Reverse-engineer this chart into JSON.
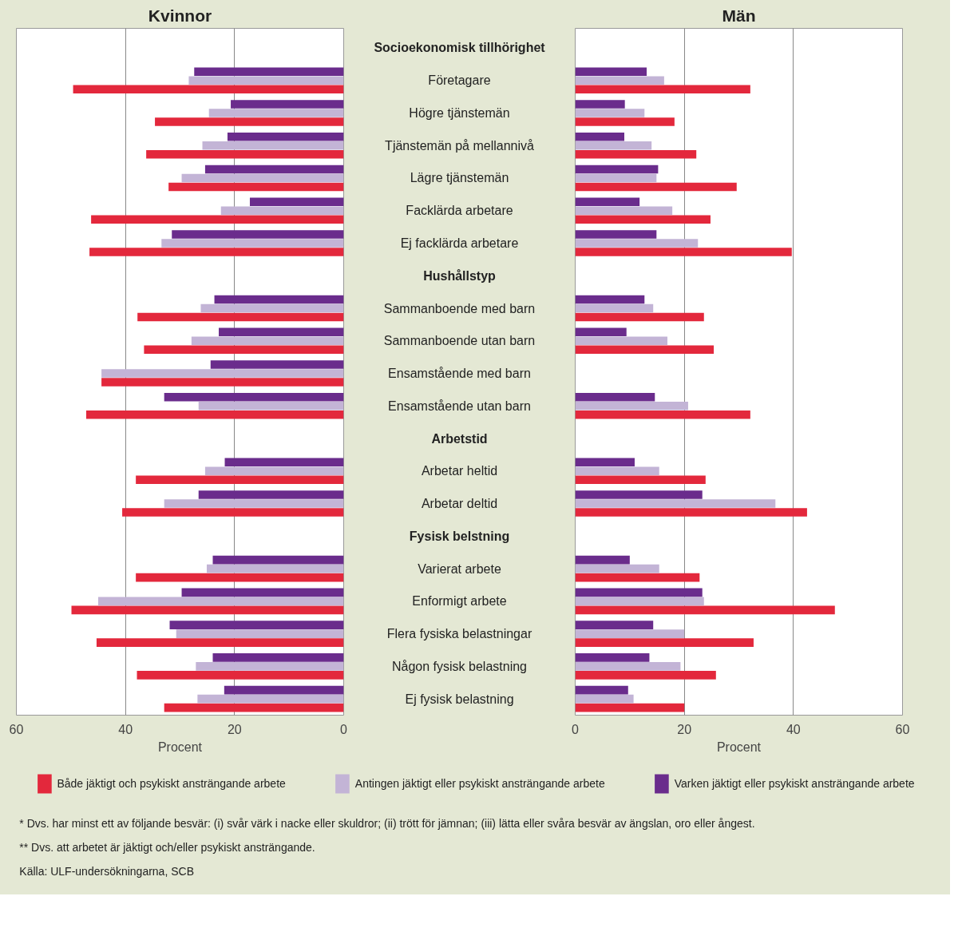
{
  "chart_data": [
    {
      "type": "bar",
      "orientation": "horizontal",
      "title": "Kvinnor",
      "xlabel": "Procent",
      "xlim": [
        60,
        0
      ],
      "xticks": [
        0,
        20,
        40,
        60
      ],
      "grid": "x",
      "legend": "bottom",
      "categories": [
        "Socioekonomisk tillhörighet",
        "Företagare",
        "Högre tjänstemän",
        "Tjänstemän på mellannivå",
        "Lägre tjänstemän",
        "Facklärda arbetare",
        "Ej facklärda arbetare",
        "Hushållstyp",
        "Sammanboende med barn",
        "Sammanboende utan barn",
        "Ensamstående med barn",
        "Ensamstående utan barn",
        "Arbetstid",
        "Arbetar heltid",
        "Arbetar deltid",
        "Fysisk belstning",
        "Varierat arbete",
        "Enformigt arbete",
        "Flera fysiska belastningar",
        "Någon fysisk belastning",
        "Ej fysisk belastning"
      ],
      "series": [
        {
          "name": "Både jäktigt och psykiskt ansträngande arbete",
          "color": "#e3283c",
          "values": [
            null,
            49.6,
            34.6,
            36.2,
            32.1,
            46.3,
            46.6,
            null,
            37.8,
            36.6,
            44.4,
            47.2,
            null,
            38.1,
            40.6,
            null,
            38.1,
            49.9,
            45.3,
            37.9,
            32.9
          ]
        },
        {
          "name": "Antingen jäktigt eller psykiskt ansträngande arbete",
          "color": "#c3b4d6",
          "values": [
            null,
            28.4,
            24.7,
            25.9,
            29.7,
            22.5,
            33.4,
            null,
            26.2,
            27.9,
            44.4,
            26.6,
            null,
            25.4,
            32.9,
            null,
            25.1,
            45.0,
            30.7,
            27.1,
            26.8
          ]
        },
        {
          "name": "Varken jäktigt eller psykiskt ansträngande arbete",
          "color": "#6a2c8c",
          "values": [
            null,
            27.4,
            20.7,
            21.3,
            25.4,
            17.2,
            31.5,
            null,
            23.7,
            22.9,
            24.4,
            32.9,
            null,
            21.8,
            26.6,
            null,
            24.0,
            29.7,
            31.9,
            24.0,
            21.9
          ]
        }
      ],
      "annotations": [
        "* Dvs. har minst ett av följande besvär: (i) svår värk i nacke eller skuldror; (ii) trött för jämnan; (iii) lätta eller svåra besvär av ängslan, oro eller ångest.",
        "** Dvs. att arbetet är jäktigt och/eller psykiskt ansträngande.",
        "Källa: ULF-undersökningarna, SCB"
      ]
    },
    {
      "type": "bar",
      "orientation": "horizontal",
      "title": "Män",
      "xlabel": "Procent",
      "xlim": [
        0,
        60
      ],
      "xticks": [
        0,
        20,
        40,
        60
      ],
      "grid": "x",
      "tick_labels": "x",
      "categories": [
        null,
        null,
        null,
        null,
        null,
        null,
        null,
        null,
        null,
        null,
        null,
        null,
        null,
        null,
        null,
        null,
        null,
        null,
        null,
        null,
        null
      ],
      "series": [
        {
          "color": "#e3283c",
          "values": [
            null,
            32.1,
            18.2,
            22.2,
            29.6,
            24.8,
            39.7,
            null,
            23.6,
            25.4,
            null,
            32.1,
            null,
            23.9,
            42.5,
            null,
            22.8,
            47.6,
            32.7,
            25.8,
            20.0
          ]
        },
        {
          "color": "#c3b4d6",
          "values": [
            null,
            16.3,
            12.7,
            14.0,
            14.9,
            17.8,
            22.5,
            null,
            14.3,
            16.9,
            null,
            20.7,
            null,
            15.4,
            36.7,
            null,
            15.4,
            23.6,
            20.0,
            19.3,
            10.7
          ]
        },
        {
          "color": "#6a2c8c",
          "values": [
            null,
            13.1,
            9.1,
            9.0,
            15.2,
            11.8,
            14.9,
            null,
            12.7,
            9.4,
            null,
            14.6,
            null,
            10.9,
            23.3,
            null,
            10.0,
            23.3,
            14.3,
            13.6,
            9.7
          ]
        }
      ]
    }
  ]
}
